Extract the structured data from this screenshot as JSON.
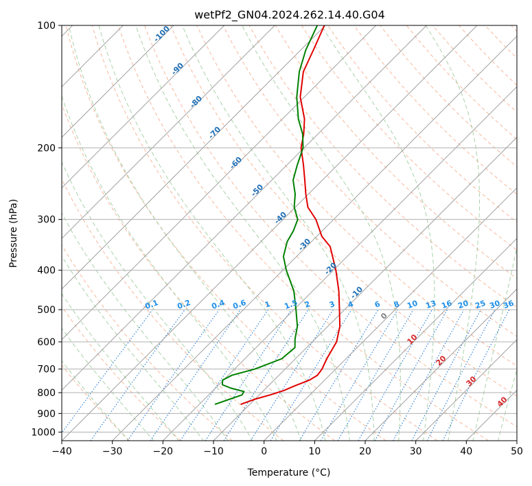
{
  "chart_data": {
    "type": "line",
    "title": "wetPf2_GN04.2024.262.14.40.G04",
    "xlabel": "Temperature (°C)",
    "ylabel": "Pressure (hPa)",
    "xlim": [
      -40,
      50
    ],
    "ylim": [
      1050,
      100
    ],
    "y_scale": "log",
    "x_ticks": [
      -40,
      -30,
      -20,
      -10,
      0,
      10,
      20,
      30,
      40,
      50
    ],
    "y_ticks": [
      100,
      200,
      300,
      400,
      500,
      600,
      700,
      800,
      900,
      1000
    ],
    "x_tick_labels": [
      "−40",
      "−30",
      "−20",
      "−10",
      "0",
      "10",
      "20",
      "30",
      "40",
      "50"
    ],
    "y_tick_labels": [
      "100",
      "200",
      "300",
      "400",
      "500",
      "600",
      "700",
      "800",
      "900",
      "1000"
    ],
    "grid": true,
    "background_lines": {
      "isotherm_color": "#a0a0a0",
      "dry_adiabat_color": "#f4a582",
      "moist_adiabat_color": "#92c592",
      "mixing_ratio_color": "#1f78d4"
    },
    "series": [
      {
        "color": "#e00000",
        "role": "temperature",
        "points": [
          [
            855,
            -11.8
          ],
          [
            830,
            -10.0
          ],
          [
            810,
            -7.8
          ],
          [
            790,
            -6.0
          ],
          [
            770,
            -4.8
          ],
          [
            745,
            -3.0
          ],
          [
            725,
            -2.4
          ],
          [
            700,
            -2.7
          ],
          [
            660,
            -3.8
          ],
          [
            600,
            -5.2
          ],
          [
            550,
            -7.6
          ],
          [
            500,
            -11.0
          ],
          [
            450,
            -14.8
          ],
          [
            400,
            -19.5
          ],
          [
            350,
            -25.3
          ],
          [
            330,
            -29.0
          ],
          [
            300,
            -33.5
          ],
          [
            280,
            -37.5
          ],
          [
            260,
            -40.5
          ],
          [
            240,
            -43.5
          ],
          [
            220,
            -46.8
          ],
          [
            200,
            -50.6
          ],
          [
            185,
            -52.8
          ],
          [
            170,
            -55.6
          ],
          [
            150,
            -60.8
          ],
          [
            130,
            -65.2
          ],
          [
            115,
            -67.5
          ],
          [
            100,
            -70.2
          ]
        ]
      },
      {
        "color": "#008000",
        "role": "dewpoint",
        "points": [
          [
            855,
            -16.9
          ],
          [
            830,
            -15.0
          ],
          [
            810,
            -13.4
          ],
          [
            795,
            -13.7
          ],
          [
            780,
            -16.9
          ],
          [
            765,
            -19.3
          ],
          [
            745,
            -20.2
          ],
          [
            725,
            -19.3
          ],
          [
            700,
            -16.0
          ],
          [
            660,
            -12.7
          ],
          [
            620,
            -12.3
          ],
          [
            590,
            -14.0
          ],
          [
            550,
            -16.0
          ],
          [
            500,
            -19.6
          ],
          [
            450,
            -23.7
          ],
          [
            400,
            -29.3
          ],
          [
            370,
            -32.6
          ],
          [
            340,
            -34.8
          ],
          [
            320,
            -35.7
          ],
          [
            300,
            -37.1
          ],
          [
            280,
            -40.2
          ],
          [
            260,
            -42.6
          ],
          [
            240,
            -45.8
          ],
          [
            220,
            -48.0
          ],
          [
            200,
            -50.2
          ],
          [
            185,
            -53.0
          ],
          [
            170,
            -56.8
          ],
          [
            150,
            -61.5
          ],
          [
            130,
            -66.0
          ],
          [
            115,
            -69.0
          ],
          [
            100,
            -71.6
          ]
        ]
      }
    ],
    "annotations": {
      "theta_labels": [
        "-100",
        "-90",
        "-80",
        "-70",
        "-60",
        "-50",
        "-40",
        "-30",
        "-20",
        "-10",
        "0",
        "10",
        "20",
        "30",
        "40"
      ],
      "mixing_ratio_labels": [
        "0.1",
        "0.2",
        "0.4",
        "0.6",
        "1",
        "1.5",
        "2",
        "3",
        "4",
        "6",
        "8",
        "10",
        "13",
        "16",
        "20",
        "25",
        "30",
        "36"
      ]
    }
  }
}
